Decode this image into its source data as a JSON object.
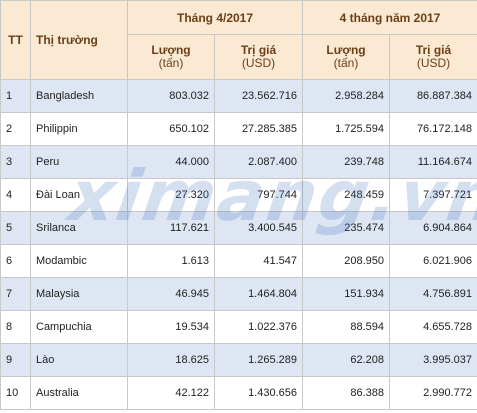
{
  "header": {
    "tt": "TT",
    "market": "Thị trường",
    "period1": "Tháng 4/2017",
    "period2": "4 tháng năm 2017",
    "volume_label": "Lượng",
    "volume_unit": "(tấn)",
    "value_label": "Trị giá",
    "value_unit": "(USD)"
  },
  "rows": [
    {
      "idx": "1",
      "market": "Bangladesh",
      "vol_m": "803.032",
      "val_m": "23.562.716",
      "vol_y": "2.958.284",
      "val_y": "86.887.384"
    },
    {
      "idx": "2",
      "market": "Philippin",
      "vol_m": "650.102",
      "val_m": "27.285.385",
      "vol_y": "1.725.594",
      "val_y": "76.172.148"
    },
    {
      "idx": "3",
      "market": "Peru",
      "vol_m": "44.000",
      "val_m": "2.087.400",
      "vol_y": "239.748",
      "val_y": "11.164.674"
    },
    {
      "idx": "4",
      "market": "Đài Loan",
      "vol_m": "27.320",
      "val_m": "797.744",
      "vol_y": "248.459",
      "val_y": "7.397.721"
    },
    {
      "idx": "5",
      "market": "Srilanca",
      "vol_m": "117.621",
      "val_m": "3.400.545",
      "vol_y": "235.474",
      "val_y": "6.904.864"
    },
    {
      "idx": "6",
      "market": "Modambic",
      "vol_m": "1.613",
      "val_m": "41.547",
      "vol_y": "208.950",
      "val_y": "6.021.906"
    },
    {
      "idx": "7",
      "market": "Malaysia",
      "vol_m": "46.945",
      "val_m": "1.464.804",
      "vol_y": "151.934",
      "val_y": "4.756.891"
    },
    {
      "idx": "8",
      "market": "Campuchia",
      "vol_m": "19.534",
      "val_m": "1.022.376",
      "vol_y": "88.594",
      "val_y": "4.655.728"
    },
    {
      "idx": "9",
      "market": "Lào",
      "vol_m": "18.625",
      "val_m": "1.265.289",
      "vol_y": "62.208",
      "val_y": "3.995.037"
    },
    {
      "idx": "10",
      "market": "Australia",
      "vol_m": "42.122",
      "val_m": "1.430.656",
      "vol_y": "86.388",
      "val_y": "2.990.772"
    }
  ],
  "watermark": "ximang.vn"
}
